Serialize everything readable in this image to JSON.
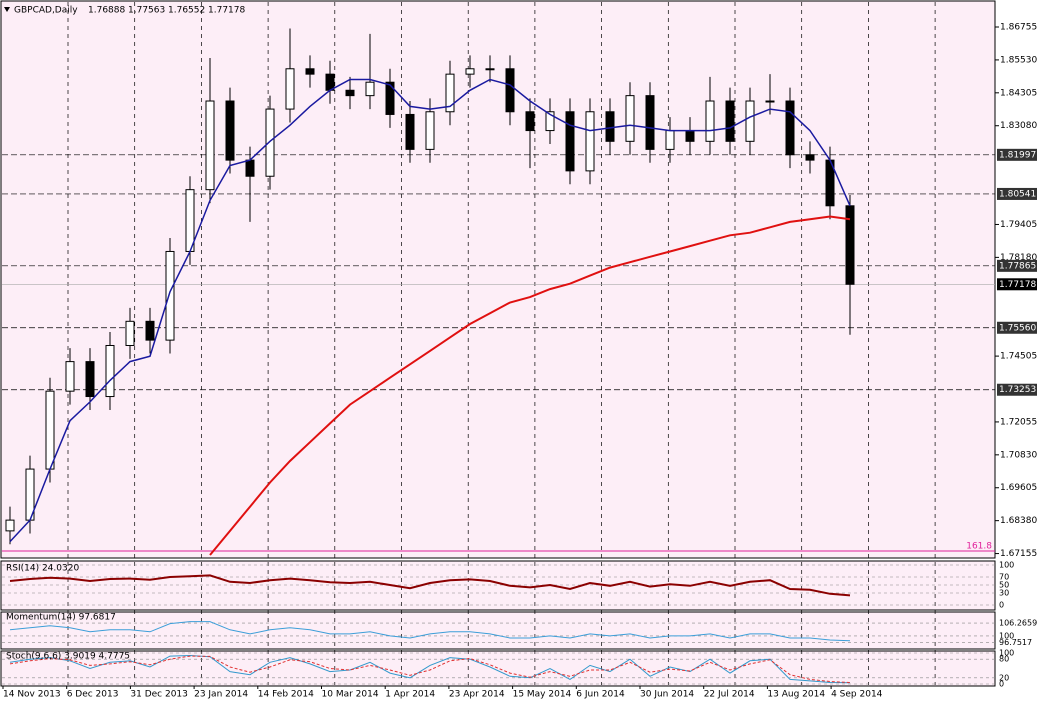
{
  "chart_data": {
    "type": "candlestick",
    "title": "GBPCAD,Daily",
    "header_ohlc": [
      1.76888,
      1.77563,
      1.76552,
      1.77178
    ],
    "open": [
      1.68,
      1.684,
      1.703,
      1.732,
      1.743,
      1.73,
      1.749,
      1.758,
      1.751,
      1.784,
      1.807,
      1.84,
      1.818,
      1.812,
      1.837,
      1.852,
      1.85,
      1.844,
      1.842,
      1.847,
      1.835,
      1.822,
      1.836,
      1.85,
      1.852,
      1.852,
      1.836,
      1.829,
      1.836,
      1.814,
      1.836,
      1.825,
      1.842,
      1.822,
      1.829,
      1.825,
      1.84,
      1.825,
      1.84,
      1.84,
      1.82,
      1.818,
      1.801
    ],
    "high": [
      1.689,
      1.708,
      1.737,
      1.748,
      1.748,
      1.754,
      1.763,
      1.763,
      1.789,
      1.812,
      1.856,
      1.845,
      1.823,
      1.842,
      1.867,
      1.857,
      1.855,
      1.849,
      1.865,
      1.852,
      1.84,
      1.841,
      1.855,
      1.857,
      1.857,
      1.857,
      1.841,
      1.841,
      1.841,
      1.841,
      1.841,
      1.847,
      1.847,
      1.834,
      1.834,
      1.849,
      1.845,
      1.845,
      1.85,
      1.845,
      1.825,
      1.823,
      1.805
    ],
    "low": [
      1.675,
      1.679,
      1.698,
      1.727,
      1.725,
      1.725,
      1.744,
      1.746,
      1.746,
      1.779,
      1.802,
      1.813,
      1.795,
      1.807,
      1.832,
      1.845,
      1.839,
      1.837,
      1.837,
      1.83,
      1.817,
      1.817,
      1.831,
      1.845,
      1.847,
      1.831,
      1.815,
      1.824,
      1.809,
      1.809,
      1.82,
      1.82,
      1.817,
      1.817,
      1.82,
      1.82,
      1.82,
      1.82,
      1.835,
      1.815,
      1.813,
      1.796,
      1.753
    ],
    "close": [
      1.684,
      1.703,
      1.732,
      1.743,
      1.73,
      1.749,
      1.758,
      1.751,
      1.784,
      1.807,
      1.84,
      1.818,
      1.812,
      1.837,
      1.852,
      1.85,
      1.844,
      1.842,
      1.847,
      1.835,
      1.822,
      1.836,
      1.85,
      1.852,
      1.852,
      1.836,
      1.829,
      1.836,
      1.814,
      1.836,
      1.825,
      1.842,
      1.822,
      1.829,
      1.825,
      1.84,
      1.825,
      1.84,
      1.84,
      1.82,
      1.818,
      1.801,
      1.77178
    ],
    "ma_fast": {
      "color": "#1a1aa0",
      "values": [
        1.676,
        1.684,
        1.703,
        1.721,
        1.728,
        1.736,
        1.743,
        1.745,
        1.769,
        1.784,
        1.803,
        1.816,
        1.818,
        1.825,
        1.831,
        1.838,
        1.844,
        1.848,
        1.848,
        1.846,
        1.838,
        1.837,
        1.838,
        1.844,
        1.848,
        1.846,
        1.84,
        1.835,
        1.831,
        1.829,
        1.83,
        1.831,
        1.83,
        1.829,
        1.829,
        1.829,
        1.83,
        1.834,
        1.837,
        1.836,
        1.829,
        1.818,
        1.801
      ]
    },
    "ma_slow": {
      "color": "#e01010",
      "values": [
        null,
        null,
        null,
        null,
        null,
        null,
        null,
        null,
        null,
        null,
        1.671,
        1.68,
        1.689,
        1.698,
        1.706,
        1.713,
        1.72,
        1.727,
        1.732,
        1.737,
        1.742,
        1.747,
        1.752,
        1.757,
        1.761,
        1.765,
        1.767,
        1.77,
        1.772,
        1.775,
        1.778,
        1.78,
        1.782,
        1.784,
        1.786,
        1.788,
        1.79,
        1.791,
        1.793,
        1.795,
        1.796,
        1.797,
        1.796
      ]
    },
    "x_labels": [
      "14 Nov 2013",
      "6 Dec 2013",
      "31 Dec 2013",
      "23 Jan 2014",
      "14 Feb 2014",
      "10 Mar 2014",
      "1 Apr 2014",
      "23 Apr 2014",
      "15 May 2014",
      "6 Jun 2014",
      "30 Jun 2014",
      "22 Jul 2014",
      "13 Aug 2014",
      "4 Sep 2014"
    ],
    "ylim": [
      1.6699,
      1.8776
    ],
    "yticks": [
      1.86755,
      {
        "value": 1.8553,
        "label": "1.85530"
      },
      1.84305,
      {
        "value": 1.8308,
        "label": "1.83080"
      },
      1.79405,
      {
        "value": 1.7818,
        "label": "1.78180"
      },
      1.74505,
      1.72055,
      {
        "value": 1.7083,
        "label": "1.70830"
      },
      1.69605,
      {
        "value": 1.6838,
        "label": "1.68380"
      },
      1.67155
    ],
    "levels": [
      1.81997,
      1.80541,
      1.77865,
      {
        "value": 1.7556,
        "label": "1.75560"
      },
      1.73253
    ],
    "current_price": 1.77178,
    "fib": {
      "name": 161.8,
      "price": 1.6725,
      "color": "#e0209a"
    },
    "indicators": [
      {
        "header": "RSI(14) 24.0320",
        "ylim": [
          0,
          100
        ],
        "yticks": [
          0,
          30,
          50,
          70,
          100
        ],
        "series": [
          {
            "color": "#8b0000",
            "width": 2,
            "values": [
              60,
              65,
              68,
              66,
              60,
              65,
              66,
              63,
              70,
              72,
              74,
              58,
              55,
              62,
              66,
              62,
              57,
              55,
              58,
              50,
              42,
              55,
              62,
              64,
              60,
              48,
              44,
              50,
              40,
              55,
              48,
              58,
              46,
              52,
              48,
              58,
              48,
              58,
              62,
              40,
              38,
              28,
              24.032
            ]
          }
        ]
      },
      {
        "header": "Momentum(14) 97.6817",
        "ylim": [
          94.6,
          110.7
        ],
        "yticks": [
          96.7517,
          100,
          106.2659
        ],
        "series": [
          {
            "color": "#3c9ed8",
            "width": 1,
            "values": [
              103,
              104,
              105,
              104,
              102,
              103,
              103,
              102,
              106,
              107,
              107,
              103,
              101,
              103,
              104,
              103,
              101,
              101,
              102,
              100,
              99,
              101,
              102,
              102,
              101,
              99,
              99,
              100,
              99,
              101,
              100,
              101,
              99,
              100,
              100,
              101,
              99,
              101,
              101,
              99,
              99,
              98,
              97.6817
            ]
          }
        ]
      },
      {
        "header": "Stoch(9,6,6) 3.9019 4.7775",
        "ylim": [
          0,
          100
        ],
        "yticks": [
          0,
          20,
          80,
          100
        ],
        "series": [
          {
            "color": "#3399cc",
            "width": 1,
            "values": [
              70,
              80,
              85,
              75,
              50,
              70,
              75,
              55,
              90,
              92,
              88,
              40,
              30,
              70,
              85,
              65,
              40,
              45,
              70,
              35,
              20,
              60,
              85,
              80,
              55,
              25,
              20,
              50,
              15,
              60,
              40,
              80,
              25,
              55,
              40,
              80,
              35,
              75,
              80,
              15,
              10,
              5,
              3.9019
            ]
          },
          {
            "color": "#e03030",
            "width": 1,
            "dash": true,
            "values": [
              65,
              75,
              82,
              78,
              60,
              65,
              72,
              62,
              80,
              90,
              89,
              55,
              38,
              55,
              78,
              72,
              50,
              45,
              60,
              45,
              28,
              45,
              75,
              82,
              62,
              35,
              22,
              40,
              25,
              45,
              45,
              70,
              38,
              48,
              42,
              70,
              45,
              65,
              78,
              30,
              15,
              8,
              4.7775
            ]
          }
        ]
      }
    ]
  }
}
